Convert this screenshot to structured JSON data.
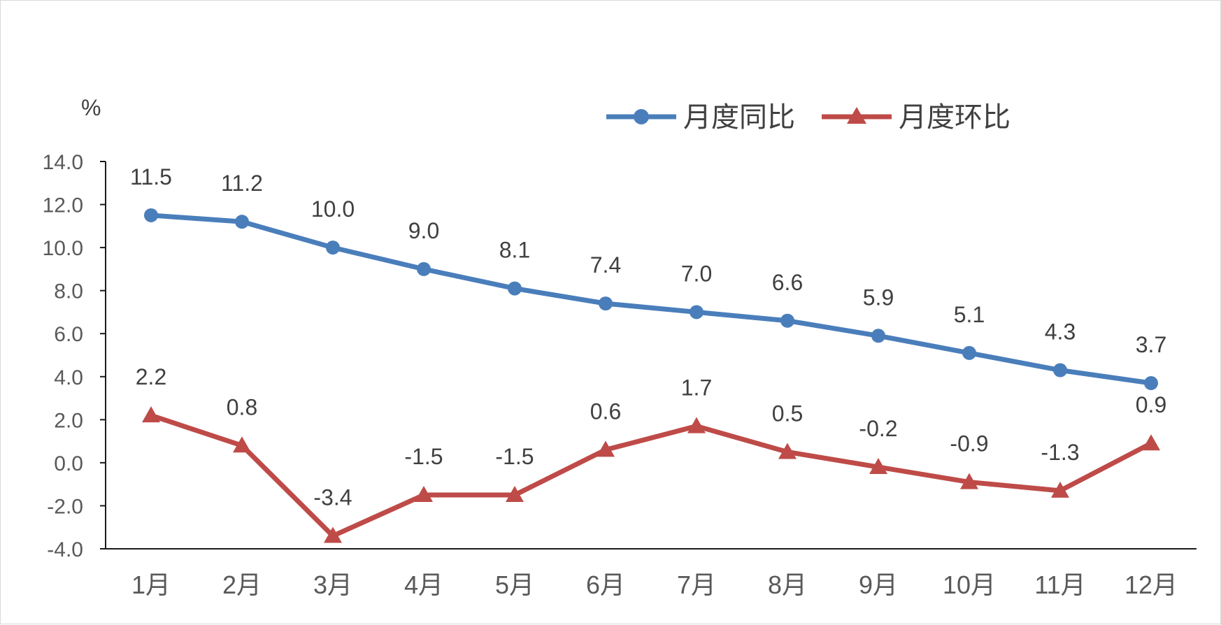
{
  "chart_data": {
    "type": "line",
    "unit": "%",
    "categories": [
      "1月",
      "2月",
      "3月",
      "4月",
      "5月",
      "6月",
      "7月",
      "8月",
      "9月",
      "10月",
      "11月",
      "12月"
    ],
    "series": [
      {
        "name": "月度同比",
        "color": "#4a7ebb",
        "marker": "circle",
        "values": [
          11.5,
          11.2,
          10.0,
          9.0,
          8.1,
          7.4,
          7.0,
          6.6,
          5.9,
          5.1,
          4.3,
          3.7
        ],
        "labels": [
          "11.5",
          "11.2",
          "10.0",
          "9.0",
          "8.1",
          "7.4",
          "7.0",
          "6.6",
          "5.9",
          "5.1",
          "4.3",
          "3.7"
        ]
      },
      {
        "name": "月度环比",
        "color": "#be4b48",
        "marker": "triangle",
        "values": [
          2.2,
          0.8,
          -3.4,
          -1.5,
          -1.5,
          0.6,
          1.7,
          0.5,
          -0.2,
          -0.9,
          -1.3,
          0.9
        ],
        "labels": [
          "2.2",
          "0.8",
          "-3.4",
          "-1.5",
          "-1.5",
          "0.6",
          "1.7",
          "0.5",
          "-0.2",
          "-0.9",
          "-1.3",
          "0.9"
        ]
      }
    ],
    "ylim": [
      -4.0,
      14.0
    ],
    "yticks": [
      "14.0",
      "12.0",
      "10.0",
      "8.0",
      "6.0",
      "4.0",
      "2.0",
      "0.0",
      "-2.0",
      "-4.0"
    ],
    "ytick_values": [
      14,
      12,
      10,
      8,
      6,
      4,
      2,
      0,
      -2,
      -4
    ],
    "legend_position": "top-right",
    "grid": false
  }
}
